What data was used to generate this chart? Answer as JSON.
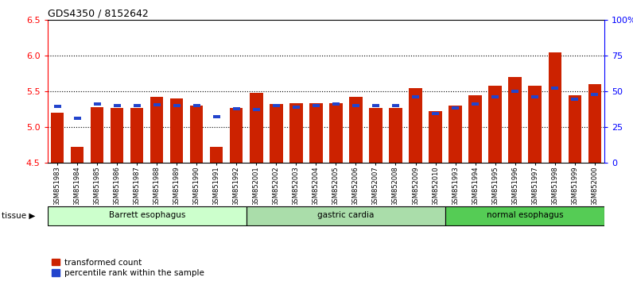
{
  "title": "GDS4350 / 8152642",
  "samples": [
    "GSM851983",
    "GSM851984",
    "GSM851985",
    "GSM851986",
    "GSM851987",
    "GSM851988",
    "GSM851989",
    "GSM851990",
    "GSM851991",
    "GSM851992",
    "GSM852001",
    "GSM852002",
    "GSM852003",
    "GSM852004",
    "GSM852005",
    "GSM852006",
    "GSM852007",
    "GSM852008",
    "GSM852009",
    "GSM852010",
    "GSM851993",
    "GSM851994",
    "GSM851995",
    "GSM851996",
    "GSM851997",
    "GSM851998",
    "GSM851999",
    "GSM852000"
  ],
  "red_values": [
    5.2,
    4.72,
    5.28,
    5.27,
    5.27,
    5.42,
    5.4,
    5.3,
    4.73,
    5.27,
    5.48,
    5.32,
    5.33,
    5.33,
    5.33,
    5.42,
    5.27,
    5.27,
    5.55,
    5.22,
    5.3,
    5.45,
    5.58,
    5.7,
    5.58,
    6.04,
    5.45,
    5.6
  ],
  "blue_values": [
    5.27,
    5.1,
    5.3,
    5.28,
    5.28,
    5.29,
    5.28,
    5.28,
    5.12,
    5.23,
    5.22,
    5.28,
    5.26,
    5.28,
    5.3,
    5.28,
    5.28,
    5.28,
    5.4,
    5.17,
    5.25,
    5.3,
    5.4,
    5.48,
    5.4,
    5.52,
    5.37,
    5.43
  ],
  "groups": [
    {
      "label": "Barrett esophagus",
      "start": 0,
      "end": 10,
      "color": "#ccffcc"
    },
    {
      "label": "gastric cardia",
      "start": 10,
      "end": 20,
      "color": "#aaddaa"
    },
    {
      "label": "normal esophagus",
      "start": 20,
      "end": 28,
      "color": "#55cc55"
    }
  ],
  "ymin": 4.5,
  "ymax": 6.5,
  "yticks_left": [
    4.5,
    5.0,
    5.5,
    6.0,
    6.5
  ],
  "yticks_right": [
    0,
    25,
    50,
    75,
    100
  ],
  "bar_color": "#cc2200",
  "blue_color": "#2244cc",
  "bar_bottom": 4.5,
  "bar_width": 0.65,
  "grid_values": [
    5.0,
    5.5,
    6.0
  ],
  "tissue_label": "tissue"
}
